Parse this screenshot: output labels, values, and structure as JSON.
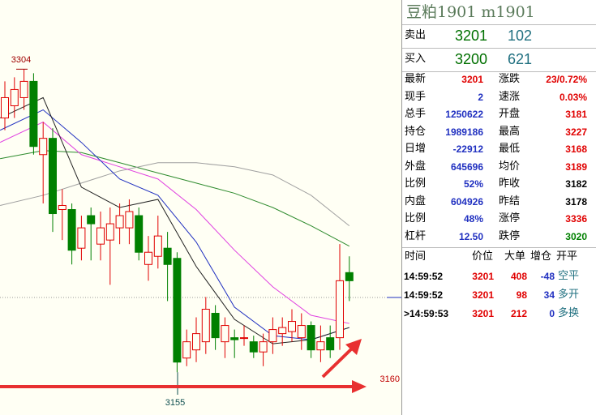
{
  "chart_data": {
    "type": "candlestick",
    "up_color": "#e00000",
    "down_color": "#008000",
    "ylim": [
      3134,
      3338
    ],
    "candles": [
      {
        "open": 3280,
        "close": 3290,
        "high": 3298,
        "low": 3274
      },
      {
        "open": 3286,
        "close": 3294,
        "high": 3300,
        "low": 3280
      },
      {
        "open": 3290,
        "close": 3298,
        "high": 3304,
        "low": 3284
      },
      {
        "open": 3298,
        "close": 3266,
        "high": 3302,
        "low": 3262
      },
      {
        "open": 3262,
        "close": 3270,
        "high": 3278,
        "low": 3238
      },
      {
        "open": 3270,
        "close": 3233,
        "high": 3275,
        "low": 3224
      },
      {
        "open": 3235,
        "close": 3237,
        "high": 3245,
        "low": 3220
      },
      {
        "open": 3235,
        "close": 3215,
        "high": 3238,
        "low": 3208
      },
      {
        "open": 3216,
        "close": 3226,
        "high": 3232,
        "low": 3210
      },
      {
        "open": 3232,
        "close": 3228,
        "high": 3236,
        "low": 3210
      },
      {
        "open": 3218,
        "close": 3226,
        "high": 3234,
        "low": 3210
      },
      {
        "open": 3220,
        "close": 3228,
        "high": 3236,
        "low": 3198
      },
      {
        "open": 3226,
        "close": 3232,
        "high": 3238,
        "low": 3218
      },
      {
        "open": 3226,
        "close": 3234,
        "high": 3240,
        "low": 3218
      },
      {
        "open": 3232,
        "close": 3214,
        "high": 3236,
        "low": 3210
      },
      {
        "open": 3208,
        "close": 3214,
        "high": 3222,
        "low": 3200
      },
      {
        "open": 3212,
        "close": 3222,
        "high": 3232,
        "low": 3206
      },
      {
        "open": 3216,
        "close": 3208,
        "high": 3224,
        "low": 3190
      },
      {
        "open": 3211,
        "close": 3160,
        "high": 3214,
        "low": 3155
      },
      {
        "open": 3162,
        "close": 3170,
        "high": 3176,
        "low": 3158
      },
      {
        "open": 3166,
        "close": 3174,
        "high": 3182,
        "low": 3160
      },
      {
        "open": 3170,
        "close": 3186,
        "high": 3192,
        "low": 3164
      },
      {
        "open": 3184,
        "close": 3172,
        "high": 3188,
        "low": 3166
      },
      {
        "open": 3170,
        "close": 3178,
        "high": 3182,
        "low": 3162
      },
      {
        "open": 3172,
        "close": 3171,
        "high": 3176,
        "low": 3162
      },
      {
        "open": 3172,
        "close": 3172,
        "high": 3178,
        "low": 3168
      },
      {
        "open": 3170,
        "close": 3165,
        "high": 3173,
        "low": 3162
      },
      {
        "open": 3165,
        "close": 3170,
        "high": 3174,
        "low": 3158
      },
      {
        "open": 3170,
        "close": 3176,
        "high": 3182,
        "low": 3164
      },
      {
        "open": 3174,
        "close": 3177,
        "high": 3182,
        "low": 3168
      },
      {
        "open": 3175,
        "close": 3180,
        "high": 3186,
        "low": 3170
      },
      {
        "open": 3172,
        "close": 3178,
        "high": 3184,
        "low": 3166
      },
      {
        "open": 3178,
        "close": 3166,
        "high": 3180,
        "low": 3162
      },
      {
        "open": 3166,
        "close": 3170,
        "high": 3178,
        "low": 3160
      },
      {
        "open": 3172,
        "close": 3166,
        "high": 3178,
        "low": 3162
      },
      {
        "open": 3172,
        "close": 3200,
        "high": 3218,
        "low": 3166
      },
      {
        "open": 3204,
        "close": 3200,
        "high": 3212,
        "low": 3190
      }
    ],
    "lines": [
      {
        "color": "#2e8b2e",
        "x": [
          -0.5,
          4,
          8,
          12,
          16,
          20,
          24,
          28,
          32,
          36
        ],
        "values": [
          3260,
          3264,
          3263,
          3258,
          3253,
          3248,
          3243,
          3236,
          3227,
          3217
        ]
      },
      {
        "color": "#a0a0a0",
        "x": [
          -0.5,
          4,
          8,
          12,
          16,
          20,
          24,
          28,
          32,
          36
        ],
        "values": [
          3237,
          3242,
          3248,
          3254,
          3258,
          3258,
          3256,
          3252,
          3242,
          3227
        ]
      },
      {
        "color": "#e040e0",
        "x": [
          -0.5,
          4,
          8,
          12,
          16,
          20,
          24,
          28,
          32,
          36
        ],
        "values": [
          3268,
          3278,
          3262,
          3256,
          3250,
          3235,
          3215,
          3197,
          3183,
          3179
        ]
      },
      {
        "color": "#2030c0",
        "x": [
          -0.5,
          4,
          8,
          12,
          16,
          20,
          24,
          28,
          32,
          36
        ],
        "values": [
          3274,
          3284,
          3268,
          3250,
          3242,
          3219,
          3187,
          3173,
          3171,
          3177
        ]
      },
      {
        "color": "#202020",
        "x": [
          -0.5,
          4,
          8,
          12,
          16,
          20,
          24,
          28,
          32,
          36
        ],
        "values": [
          3280,
          3290,
          3246,
          3236,
          3240,
          3207,
          3181,
          3169,
          3171,
          3177
        ]
      }
    ],
    "high_label": 3304,
    "low_label": 3155,
    "level_label": 3160
  },
  "panel": {
    "title": "豆粕1901  m1901",
    "sell": [
      "卖出",
      "3201",
      "102"
    ],
    "buy": [
      "买入",
      "3200",
      "621"
    ],
    "stats": [
      [
        "最新",
        "3201",
        "涨跌",
        "23/0.72%"
      ],
      [
        "现手",
        "2",
        "速涨",
        "0.03%"
      ],
      [
        "总手",
        "1250622",
        "开盘",
        "3181"
      ],
      [
        "持仓",
        "1989186",
        "最高",
        "3227"
      ],
      [
        "日增",
        "-22912",
        "最低",
        "3168"
      ],
      [
        "外盘",
        "645696",
        "均价",
        "3189"
      ],
      [
        "比例",
        "52%",
        "昨收",
        "3182"
      ],
      [
        "内盘",
        "604926",
        "昨结",
        "3178"
      ],
      [
        "比例",
        "48%",
        "涨停",
        "3336"
      ],
      [
        "杠杆",
        "12.50",
        "跌停",
        "3020"
      ]
    ],
    "trades_header": [
      "时间",
      "价位",
      "大单",
      "增仓",
      "开平"
    ],
    "trades": [
      [
        "14:59:52",
        "3201",
        "408",
        "-48",
        "空平"
      ],
      [
        "14:59:52",
        "3201",
        "98",
        "34",
        "多开"
      ],
      [
        ">14:59:53",
        "3201",
        "212",
        "0",
        "多换"
      ]
    ]
  }
}
